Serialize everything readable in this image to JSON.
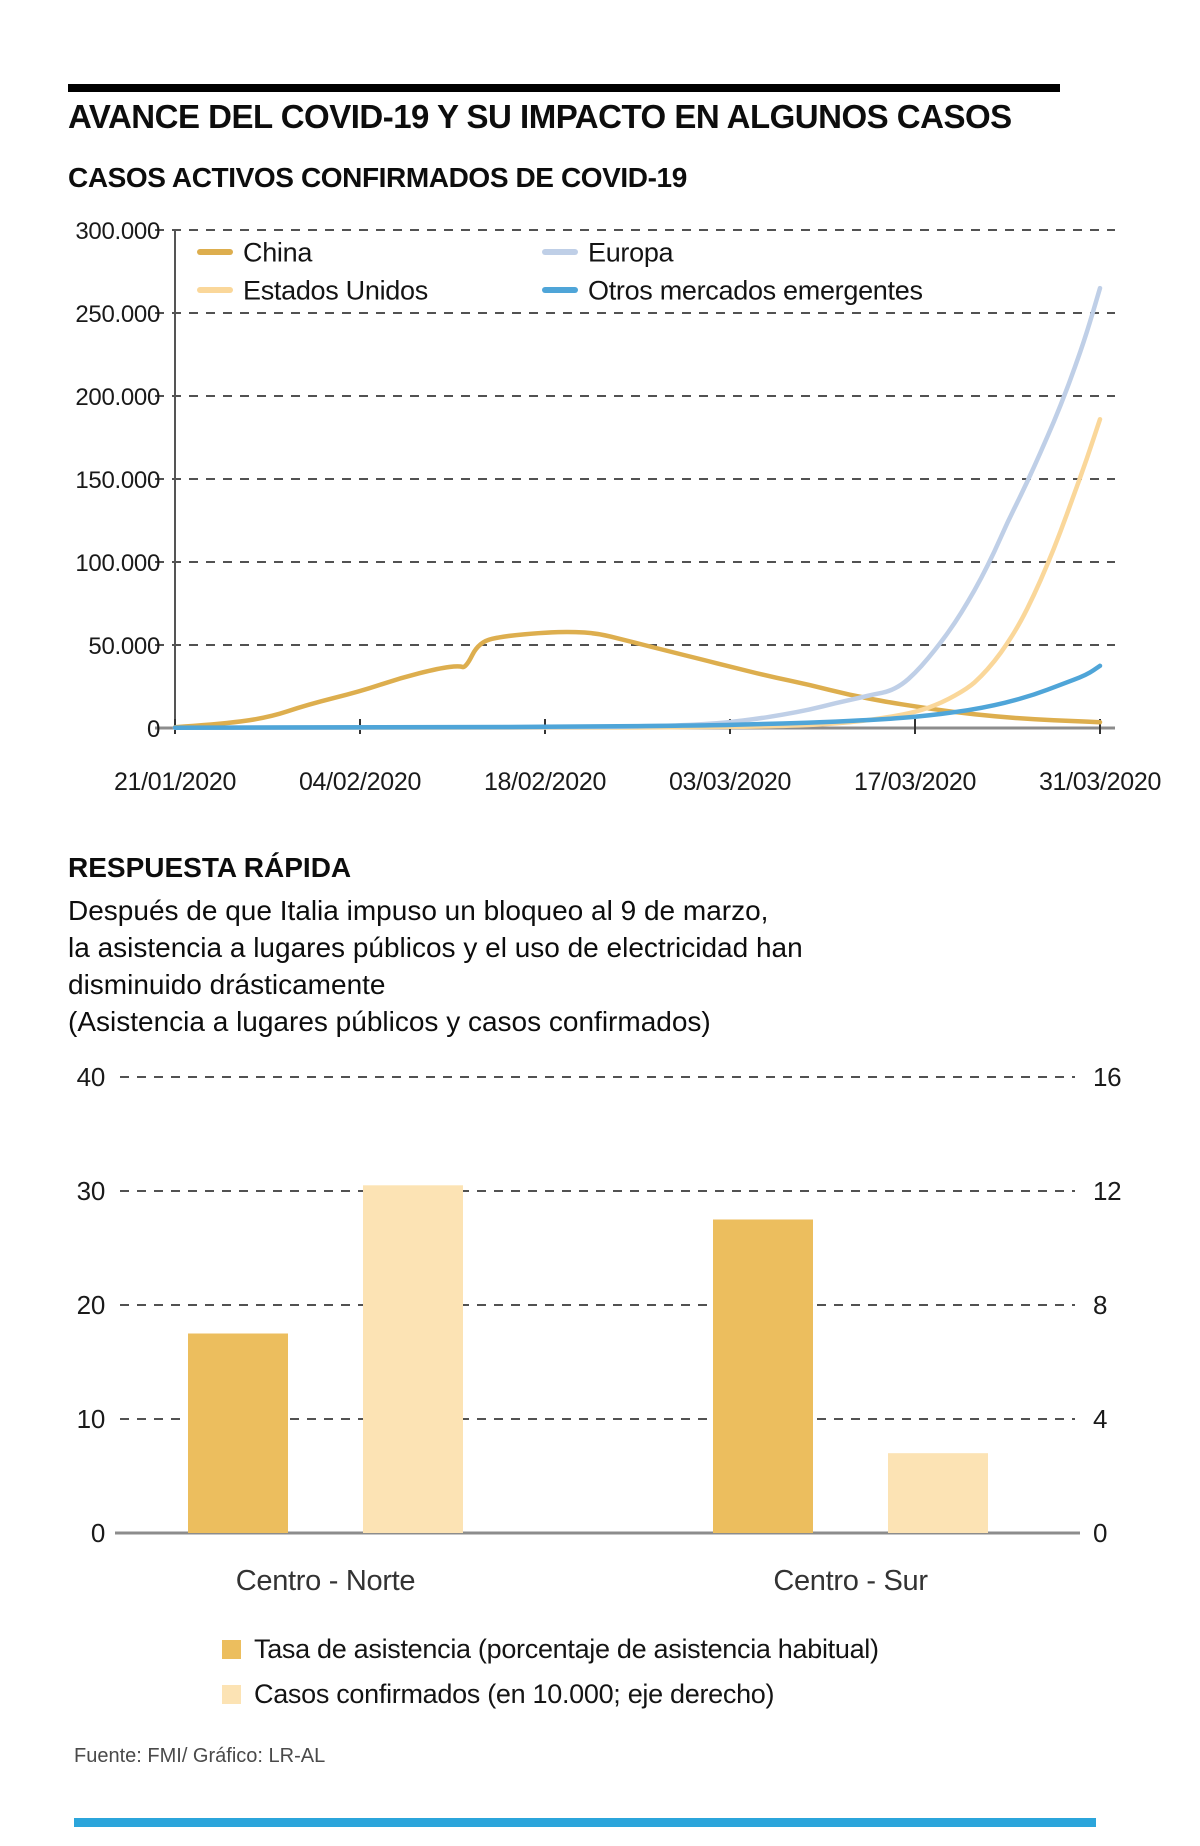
{
  "page": {
    "background": "#ffffff",
    "top_rule_color": "#000000",
    "bottom_bar_color": "#2ba5db"
  },
  "header": {
    "title": "AVANCE DEL COVID-19 Y SU IMPACTO EN ALGUNOS CASOS"
  },
  "respuesta": {
    "heading": "RESPUESTA RÁPIDA",
    "lines": [
      "Después de que Italia impuso un bloqueo al 9 de marzo,",
      "la asistencia a lugares públicos y el uso de electricidad han",
      "disminuido drásticamente"
    ],
    "parenthetical": "(Asistencia a lugares públicos y casos confirmados)"
  },
  "footer": {
    "source": "Fuente: FMI/ Gráfico: LR-AL"
  },
  "chart_data": [
    {
      "type": "line",
      "title": "CASOS ACTIVOS CONFIRMADOS DE COVID-19",
      "xlabel": "",
      "ylabel": "",
      "ylim": [
        0,
        300000
      ],
      "x_days_range": [
        0,
        70
      ],
      "grid": "dashed-horizontal",
      "legend_position": "top-left-two-columns",
      "y_ticks": [
        0,
        50000,
        100000,
        150000,
        200000,
        250000,
        300000
      ],
      "y_tick_labels": [
        "0",
        "50.000",
        "100.000",
        "150.000",
        "200.000",
        "250.000",
        "300.000"
      ],
      "x_tick_days": [
        0,
        14,
        28,
        42,
        56,
        70
      ],
      "x_tick_labels": [
        "21/01/2020",
        "04/02/2020",
        "18/02/2020",
        "03/03/2020",
        "17/03/2020",
        "31/03/2020"
      ],
      "series": [
        {
          "name": "China",
          "color": "#ddae4e",
          "points": [
            [
              0,
              500
            ],
            [
              3,
              2000
            ],
            [
              7,
              6000
            ],
            [
              10,
              14000
            ],
            [
              14,
              22000
            ],
            [
              17,
              30000
            ],
            [
              20,
              36000
            ],
            [
              21.5,
              37500
            ],
            [
              22,
              36000
            ],
            [
              23,
              52000
            ],
            [
              25,
              55500
            ],
            [
              28,
              57500
            ],
            [
              30,
              58000
            ],
            [
              32,
              57000
            ],
            [
              34,
              53000
            ],
            [
              37,
              47000
            ],
            [
              40,
              41000
            ],
            [
              42,
              37000
            ],
            [
              45,
              31000
            ],
            [
              48,
              26000
            ],
            [
              51,
              20000
            ],
            [
              54,
              15500
            ],
            [
              56,
              13000
            ],
            [
              59,
              9500
            ],
            [
              62,
              7000
            ],
            [
              65,
              5200
            ],
            [
              68,
              4200
            ],
            [
              70,
              3500
            ]
          ]
        },
        {
          "name": "Estados Unidos",
          "color": "#fad79a",
          "points": [
            [
              0,
              100
            ],
            [
              30,
              200
            ],
            [
              40,
              500
            ],
            [
              45,
              1000
            ],
            [
              48,
              1800
            ],
            [
              50,
              2800
            ],
            [
              52,
              4200
            ],
            [
              54,
              6500
            ],
            [
              56,
              9500
            ],
            [
              58,
              15000
            ],
            [
              60,
              24000
            ],
            [
              61,
              31000
            ],
            [
              62,
              40000
            ],
            [
              63,
              51000
            ],
            [
              64,
              64000
            ],
            [
              65,
              80000
            ],
            [
              66,
              98000
            ],
            [
              67,
              118000
            ],
            [
              68,
              140000
            ],
            [
              69,
              162000
            ],
            [
              70,
              186000
            ]
          ]
        },
        {
          "name": "Europa",
          "color": "#bfcfe7",
          "points": [
            [
              0,
              100
            ],
            [
              20,
              300
            ],
            [
              30,
              500
            ],
            [
              35,
              900
            ],
            [
              38,
              1500
            ],
            [
              40,
              2200
            ],
            [
              42,
              3500
            ],
            [
              44,
              5500
            ],
            [
              46,
              8000
            ],
            [
              48,
              11000
            ],
            [
              50,
              15000
            ],
            [
              52,
              18500
            ],
            [
              53,
              20500
            ],
            [
              54,
              22000
            ],
            [
              55,
              26000
            ],
            [
              56,
              33000
            ],
            [
              57,
              42000
            ],
            [
              58,
              52000
            ],
            [
              59,
              63000
            ],
            [
              60,
              76000
            ],
            [
              61,
              90000
            ],
            [
              62,
              106000
            ],
            [
              63,
              124000
            ],
            [
              64,
              140000
            ],
            [
              65,
              157000
            ],
            [
              66,
              175000
            ],
            [
              67,
              194000
            ],
            [
              68,
              215000
            ],
            [
              69,
              238000
            ],
            [
              70,
              265000
            ]
          ]
        },
        {
          "name": "Otros mercados emergentes",
          "color": "#4fa5d8",
          "points": [
            [
              0,
              200
            ],
            [
              20,
              500
            ],
            [
              30,
              800
            ],
            [
              40,
              1500
            ],
            [
              44,
              2200
            ],
            [
              48,
              3200
            ],
            [
              52,
              4500
            ],
            [
              55,
              6000
            ],
            [
              57,
              7500
            ],
            [
              59,
              9500
            ],
            [
              61,
              12000
            ],
            [
              63,
              15500
            ],
            [
              65,
              20000
            ],
            [
              67,
              26000
            ],
            [
              69,
              32000
            ],
            [
              70,
              37500
            ]
          ]
        }
      ]
    },
    {
      "type": "bar",
      "title": "",
      "categories": [
        "Centro - Norte",
        "Centro - Sur"
      ],
      "left_axis": {
        "ticks": [
          0,
          10,
          20,
          30,
          40
        ],
        "tick_labels": [
          "0",
          "10",
          "20",
          "30",
          "40"
        ],
        "lim": [
          0,
          40
        ]
      },
      "right_axis": {
        "ticks": [
          0,
          4,
          8,
          12,
          16
        ],
        "tick_labels": [
          "0",
          "4",
          "8",
          "12",
          "16"
        ],
        "lim": [
          0,
          16
        ]
      },
      "grid": "dashed-horizontal",
      "legend_position": "bottom-left",
      "series": [
        {
          "name": "Tasa de asistencia (porcentaje de asistencia habitual)",
          "axis": "left",
          "color": "#ecbe5e",
          "values": [
            17.5,
            27.5
          ]
        },
        {
          "name": "Casos confirmados (en 10.000; eje derecho)",
          "axis": "right",
          "color": "#fce3b4",
          "values": [
            12.2,
            2.8
          ]
        }
      ]
    }
  ]
}
